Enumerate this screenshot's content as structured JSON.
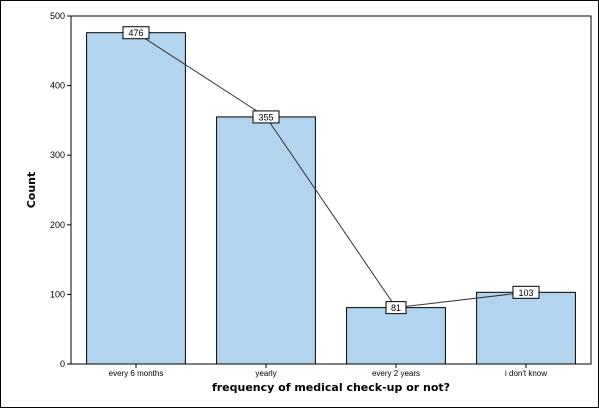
{
  "colors": {
    "bar_fill": "#b3d4ee",
    "bar_stroke": "#000000",
    "line": "#333333",
    "label_box_fill": "#ffffff",
    "axis": "#000000"
  },
  "chart_data": {
    "type": "bar",
    "title": "",
    "xlabel": "frequency of medical check-up or not?",
    "ylabel": "Count",
    "categories": [
      "every 6 months",
      "yearly",
      "every 2 years",
      "i don't know"
    ],
    "values": [
      476,
      355,
      81,
      103
    ],
    "ylim": [
      0,
      500
    ],
    "yticks": [
      0,
      100,
      200,
      300,
      400,
      500
    ],
    "grid": false,
    "legend": "none",
    "overlay": "line connecting bar tops with data labels"
  }
}
